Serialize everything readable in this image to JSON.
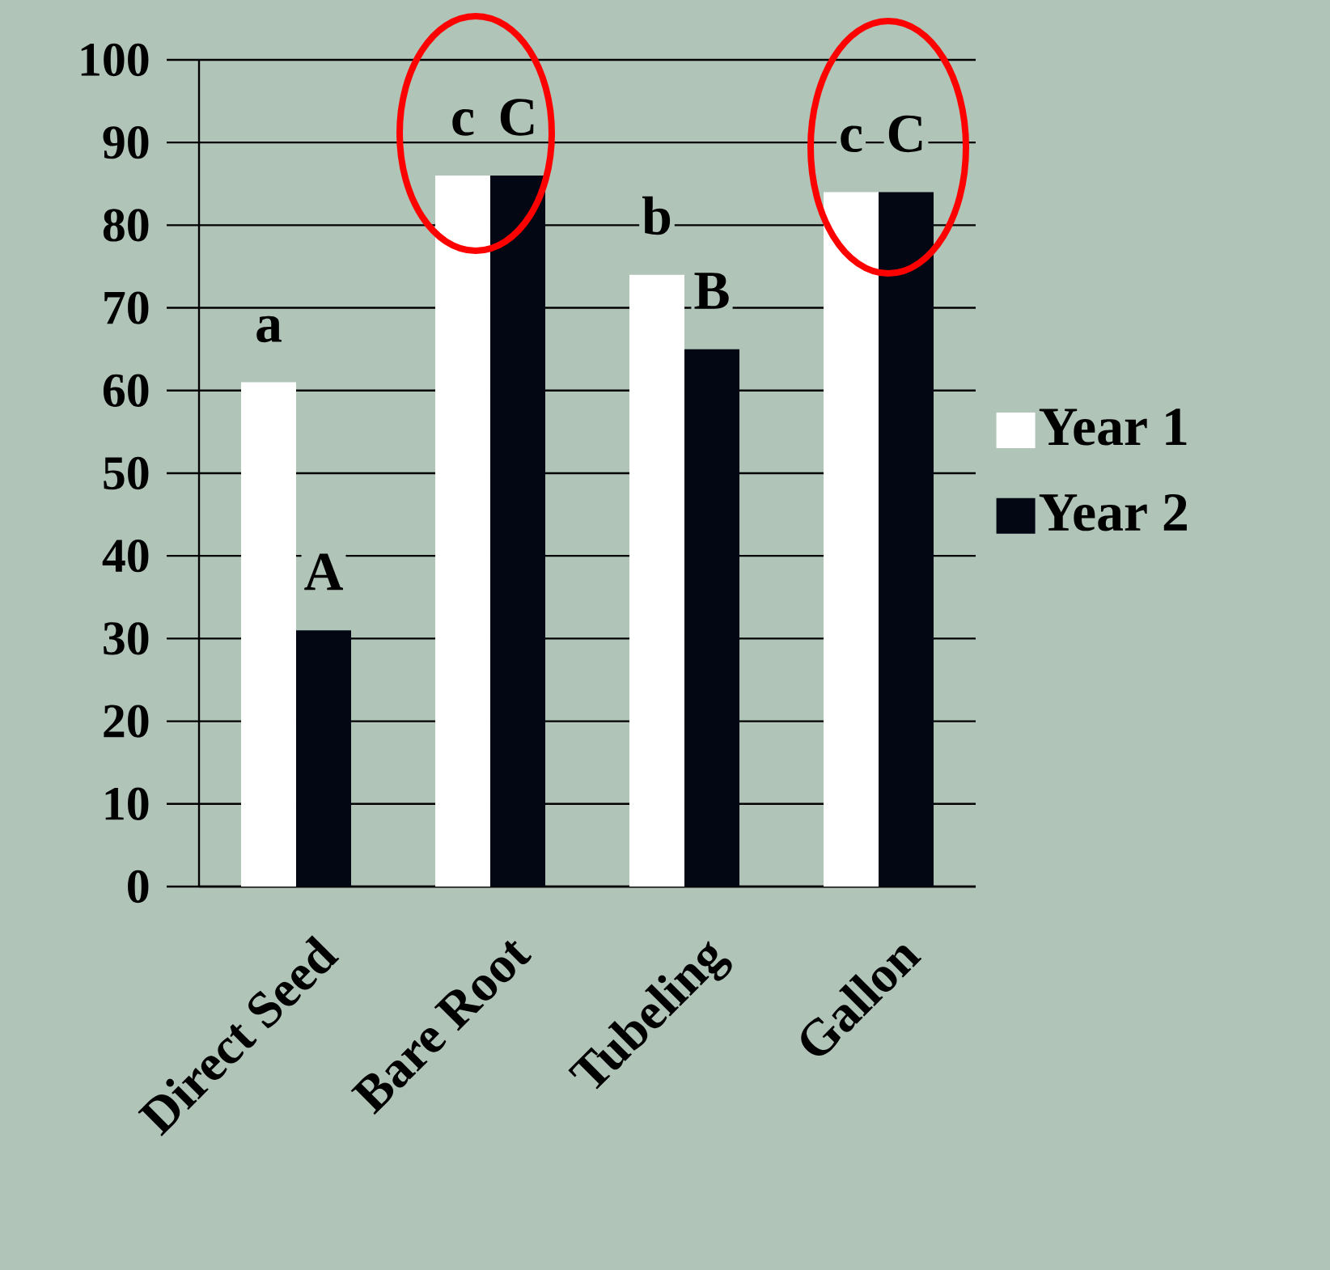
{
  "chart_data": {
    "type": "bar",
    "categories": [
      "Direct Seed",
      "Bare Root",
      "Tubeling",
      "Gallon"
    ],
    "series": [
      {
        "name": "Year 1",
        "color": "#ffffff",
        "values": [
          61,
          86,
          74,
          84
        ]
      },
      {
        "name": "Year 2",
        "color": "#020713",
        "values": [
          31,
          86,
          65,
          84
        ]
      }
    ],
    "ylim": [
      0,
      100
    ],
    "yticks": [
      0,
      10,
      20,
      30,
      40,
      50,
      60,
      70,
      80,
      90,
      100
    ],
    "grid": "y",
    "legend": "right",
    "annotations": [
      "a",
      "A",
      "c",
      "C",
      "b",
      "B",
      "c",
      "C"
    ]
  }
}
